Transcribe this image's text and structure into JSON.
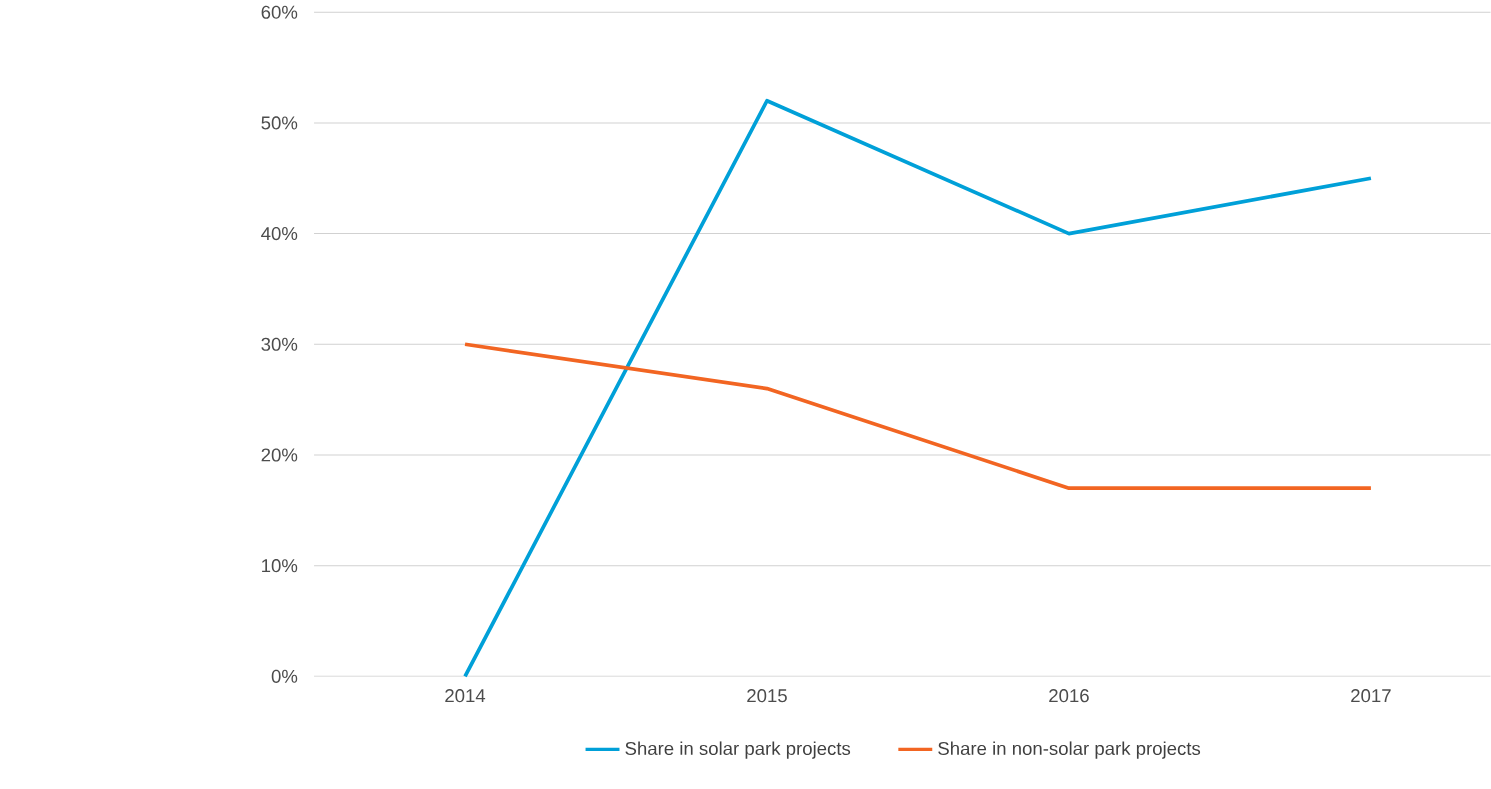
{
  "chart_data": {
    "type": "line",
    "categories": [
      "2014",
      "2015",
      "2016",
      "2017"
    ],
    "series": [
      {
        "name": "Share in solar park projects",
        "color": "#00a0d8",
        "values": [
          0,
          52,
          40,
          45
        ]
      },
      {
        "name": "Share in non-solar park projects",
        "color": "#f26522",
        "values": [
          30,
          26,
          17,
          17
        ]
      }
    ],
    "ylim": [
      0,
      60
    ],
    "yticks": [
      {
        "value": 0,
        "label": "0%"
      },
      {
        "value": 10,
        "label": "10%"
      },
      {
        "value": 20,
        "label": "20%"
      },
      {
        "value": 30,
        "label": "30%"
      },
      {
        "value": 40,
        "label": "40%"
      },
      {
        "value": 50,
        "label": "50%"
      },
      {
        "value": 60,
        "label": "60%"
      }
    ],
    "grid": "y",
    "legend": "bottom",
    "marker": "none",
    "line_style": "solid"
  }
}
